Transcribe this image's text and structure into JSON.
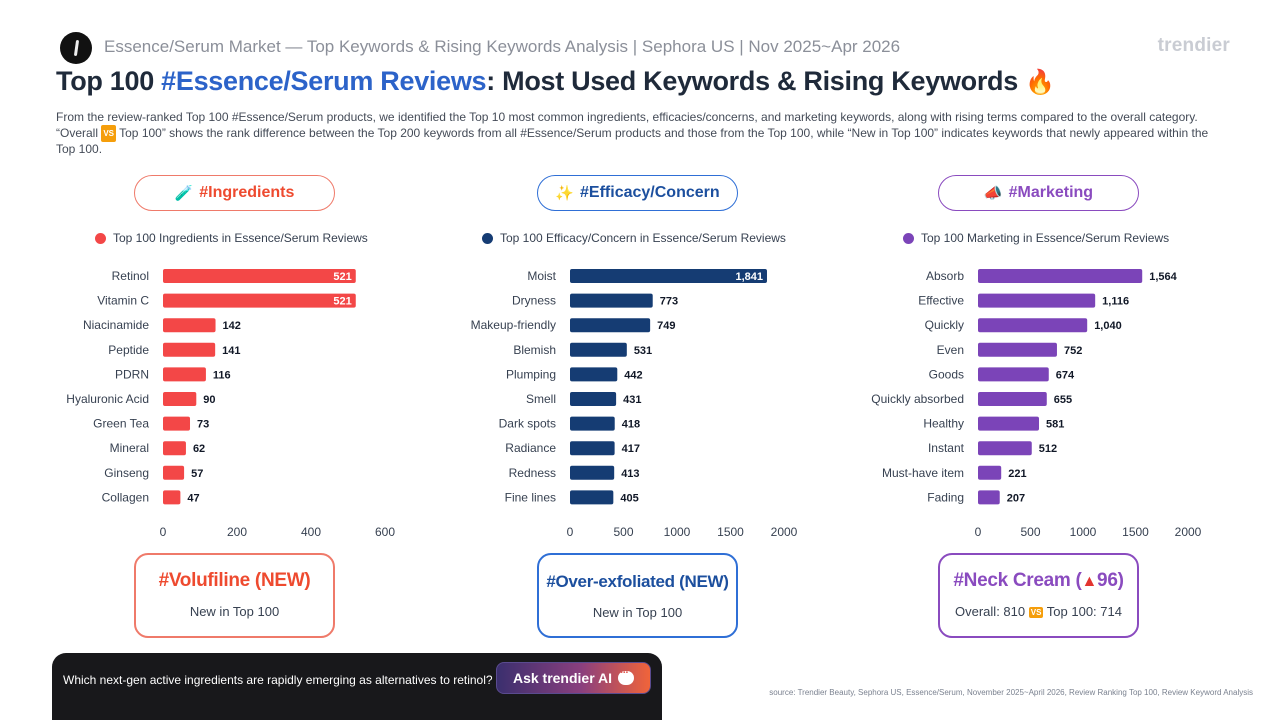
{
  "header": {
    "subtitle": "Essence/Serum Market — Top Keywords & Rising Keywords Analysis | Sephora US | Nov 2025~Apr 2026",
    "brand": "trendier",
    "title_prefix": "Top 100 ",
    "title_accent": "#Essence/Serum Reviews",
    "title_suffix": ": Most Used Keywords & Rising Keywords ",
    "title_emoji": "🔥"
  },
  "description": {
    "part1": "From the review-ranked Top 100 #Essence/Serum products, we identified the Top 10 most common ingredients, efficacies/concerns, and marketing keywords, along with rising terms compared to the overall category. “Overall ",
    "vs_badge": "VS",
    "part2": " Top 100” shows the rank difference between the Top 200 keywords from all #Essence/Serum products and those from the Top 100, while “New in Top 100” indicates keywords that newly appeared within the Top 100."
  },
  "sections": [
    {
      "pill_icon": "🧪",
      "pill_label": "#Ingredients",
      "legend": "Top 100 Ingredients in Essence/Serum Reviews"
    },
    {
      "pill_icon": "✨",
      "pill_label": "#Efficacy/Concern",
      "legend": "Top 100 Efficacy/Concern in Essence/Serum Reviews"
    },
    {
      "pill_icon": "📣",
      "pill_label": "#Marketing",
      "legend": "Top 100 Marketing in Essence/Serum Reviews"
    }
  ],
  "highlights": [
    {
      "title": "#Volufiline (NEW)",
      "sub": "New in Top 100"
    },
    {
      "title": "#Over-exfoliated (NEW)",
      "sub": "New in Top 100"
    },
    {
      "title_prefix": "#Neck Cream (",
      "title_arrow": "▲",
      "title_value": "96",
      "title_suffix": ")",
      "sub_overall": "Overall: 810",
      "sub_vs": "VS",
      "sub_top": "Top 100: 714"
    }
  ],
  "ask": {
    "question": "Which next-gen active ingredients are rapidly emerging as alternatives to retinol?",
    "button": "Ask trendier AI"
  },
  "source": "source: Trendier Beauty, Sephora US, Essence/Serum, November 2025~April 2026, Review Ranking Top 100, Review Keyword Analysis",
  "chart_data": [
    {
      "type": "bar",
      "orientation": "horizontal",
      "color": "#f34747",
      "categories": [
        "Retinol",
        "Vitamin C",
        "Niacinamide",
        "Peptide",
        "PDRN",
        "Hyaluronic Acid",
        "Green Tea",
        "Mineral",
        "Ginseng",
        "Collagen"
      ],
      "values": [
        521,
        521,
        142,
        141,
        116,
        90,
        73,
        62,
        57,
        47
      ],
      "labels": [
        "521",
        "521",
        "142",
        "141",
        "116",
        "90",
        "73",
        "62",
        "57",
        "47"
      ],
      "xlim": [
        0,
        600
      ],
      "ticks": [
        0,
        200,
        400,
        600
      ],
      "tick_labels": [
        "0",
        "200",
        "400",
        "600"
      ]
    },
    {
      "type": "bar",
      "orientation": "horizontal",
      "color": "#153c73",
      "categories": [
        "Moist",
        "Dryness",
        "Makeup-friendly",
        "Blemish",
        "Plumping",
        "Smell",
        "Dark spots",
        "Radiance",
        "Redness",
        "Fine lines"
      ],
      "values": [
        1841,
        773,
        749,
        531,
        442,
        431,
        418,
        417,
        413,
        405
      ],
      "labels": [
        "1,841",
        "773",
        "749",
        "531",
        "442",
        "431",
        "418",
        "417",
        "413",
        "405"
      ],
      "xlim": [
        0,
        2000
      ],
      "ticks": [
        0,
        500,
        1000,
        1500,
        2000
      ],
      "tick_labels": [
        "0",
        "500",
        "1000",
        "1500",
        "2000"
      ]
    },
    {
      "type": "bar",
      "orientation": "horizontal",
      "color": "#7b44b8",
      "categories": [
        "Absorb",
        "Effective",
        "Quickly",
        "Even",
        "Goods",
        "Quickly absorbed",
        "Healthy",
        "Instant",
        "Must-have item",
        "Fading"
      ],
      "values": [
        1564,
        1116,
        1040,
        752,
        674,
        655,
        581,
        512,
        221,
        207
      ],
      "labels": [
        "1,564",
        "1,116",
        "1,040",
        "752",
        "674",
        "655",
        "581",
        "512",
        "221",
        "207"
      ],
      "xlim": [
        0,
        2000
      ],
      "ticks": [
        0,
        500,
        1000,
        1500,
        2000
      ],
      "tick_labels": [
        "0",
        "500",
        "1000",
        "1500",
        "2000"
      ]
    }
  ],
  "colors": {
    "ingredients": "#f34747",
    "efficacy": "#153c73",
    "marketing": "#7b44b8",
    "ingredients_box": "#ef7a6a",
    "ingredients_title": "#ee4a2f",
    "efficacy_pill": "#2f6fd6",
    "efficacy_title": "#1c4f9e",
    "marketing_pill": "#8a4bbf"
  }
}
